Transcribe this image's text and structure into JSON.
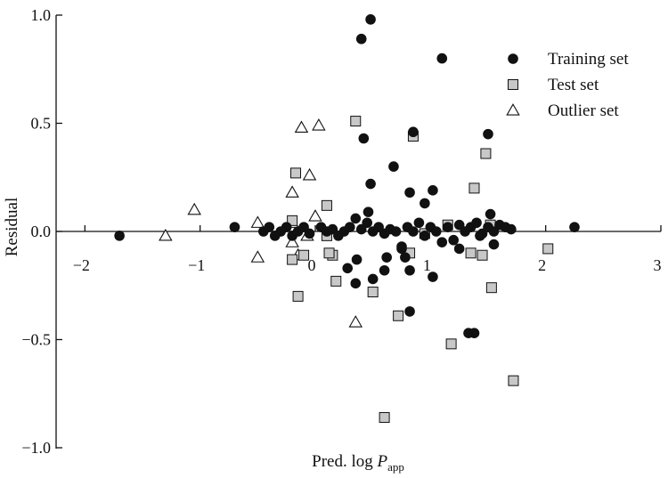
{
  "chart_data": {
    "type": "scatter",
    "title": "",
    "xlabel": "Pred. log ",
    "xlabel_var": "P",
    "xlabel_sub": "app",
    "ylabel": "Residual",
    "xlim": [
      -2.25,
      3.0
    ],
    "ylim": [
      -1.0,
      1.0
    ],
    "x_ticks": [
      -2,
      -1,
      0,
      1,
      2,
      3
    ],
    "x_tick_labels": [
      "−2",
      "−1",
      "0",
      "1",
      "2",
      "3"
    ],
    "y_ticks": [
      1.0,
      0.5,
      0.0,
      -0.5,
      -1.0
    ],
    "y_tick_labels": [
      "1.0",
      "0.5",
      "0.0",
      "−0.5",
      "−1.0"
    ],
    "grid": false,
    "legend_position": "top-right",
    "legend": [
      {
        "label": "Training set",
        "marker": "circle"
      },
      {
        "label": "Test set",
        "marker": "square"
      },
      {
        "label": "Outlier set",
        "marker": "triangle"
      }
    ],
    "series": [
      {
        "name": "Training set",
        "marker": "circle",
        "color": "#111111",
        "points": [
          [
            -1.7,
            -0.02
          ],
          [
            -0.7,
            0.02
          ],
          [
            -0.45,
            0.0
          ],
          [
            -0.4,
            0.02
          ],
          [
            -0.35,
            -0.02
          ],
          [
            -0.3,
            0.0
          ],
          [
            -0.25,
            0.02
          ],
          [
            -0.2,
            -0.02
          ],
          [
            -0.15,
            0.0
          ],
          [
            -0.1,
            0.02
          ],
          [
            -0.05,
            -0.01
          ],
          [
            0.05,
            0.02
          ],
          [
            0.1,
            0.0
          ],
          [
            0.15,
            0.01
          ],
          [
            0.2,
            -0.02
          ],
          [
            0.25,
            0.0
          ],
          [
            0.3,
            0.02
          ],
          [
            0.35,
            0.06
          ],
          [
            0.4,
            0.01
          ],
          [
            0.45,
            0.04
          ],
          [
            0.5,
            0.0
          ],
          [
            0.55,
            0.02
          ],
          [
            0.6,
            -0.01
          ],
          [
            0.65,
            0.01
          ],
          [
            0.7,
            0.0
          ],
          [
            0.75,
            -0.08
          ],
          [
            0.8,
            0.02
          ],
          [
            0.85,
            0.0
          ],
          [
            0.9,
            0.04
          ],
          [
            0.95,
            -0.02
          ],
          [
            1.0,
            0.02
          ],
          [
            1.05,
            0.0
          ],
          [
            1.1,
            -0.05
          ],
          [
            1.15,
            0.02
          ],
          [
            1.2,
            -0.04
          ],
          [
            1.25,
            0.03
          ],
          [
            1.3,
            0.0
          ],
          [
            1.35,
            0.02
          ],
          [
            1.4,
            0.04
          ],
          [
            1.45,
            -0.01
          ],
          [
            1.5,
            0.02
          ],
          [
            1.55,
            0.0
          ],
          [
            1.6,
            0.03
          ],
          [
            1.65,
            0.02
          ],
          [
            1.7,
            0.01
          ],
          [
            0.4,
            0.89
          ],
          [
            0.48,
            0.98
          ],
          [
            1.1,
            0.8
          ],
          [
            0.42,
            0.43
          ],
          [
            0.85,
            0.46
          ],
          [
            1.5,
            0.45
          ],
          [
            0.68,
            0.3
          ],
          [
            0.48,
            0.22
          ],
          [
            0.82,
            0.18
          ],
          [
            1.02,
            0.19
          ],
          [
            0.95,
            0.13
          ],
          [
            0.46,
            0.09
          ],
          [
            0.36,
            -0.13
          ],
          [
            0.28,
            -0.17
          ],
          [
            0.35,
            -0.24
          ],
          [
            0.5,
            -0.22
          ],
          [
            0.6,
            -0.18
          ],
          [
            0.82,
            -0.18
          ],
          [
            1.02,
            -0.21
          ],
          [
            0.78,
            -0.12
          ],
          [
            0.82,
            -0.37
          ],
          [
            1.38,
            -0.47
          ],
          [
            1.33,
            -0.47
          ],
          [
            1.55,
            -0.06
          ],
          [
            1.25,
            -0.08
          ],
          [
            0.62,
            -0.12
          ],
          [
            0.75,
            -0.07
          ],
          [
            2.25,
            0.02
          ],
          [
            1.52,
            0.08
          ],
          [
            1.43,
            -0.02
          ]
        ]
      },
      {
        "name": "Test set",
        "marker": "square",
        "color": "#c8c8c8",
        "points": [
          [
            0.35,
            0.51
          ],
          [
            0.85,
            0.44
          ],
          [
            1.48,
            0.36
          ],
          [
            -0.17,
            0.27
          ],
          [
            1.38,
            0.2
          ],
          [
            0.1,
            0.12
          ],
          [
            -0.2,
            0.05
          ],
          [
            1.15,
            0.03
          ],
          [
            -0.2,
            -0.13
          ],
          [
            -0.1,
            -0.11
          ],
          [
            0.15,
            -0.11
          ],
          [
            0.12,
            -0.1
          ],
          [
            0.82,
            -0.1
          ],
          [
            1.35,
            -0.1
          ],
          [
            1.45,
            -0.11
          ],
          [
            0.18,
            -0.23
          ],
          [
            0.5,
            -0.28
          ],
          [
            -0.15,
            -0.3
          ],
          [
            0.72,
            -0.39
          ],
          [
            2.02,
            -0.08
          ],
          [
            1.53,
            -0.26
          ],
          [
            1.18,
            -0.52
          ],
          [
            1.72,
            -0.69
          ],
          [
            0.6,
            -0.86
          ],
          [
            0.95,
            -0.01
          ],
          [
            0.1,
            -0.02
          ],
          [
            1.52,
            0.03
          ]
        ]
      },
      {
        "name": "Outlier set",
        "marker": "triangle",
        "color": "#ffffff",
        "points": [
          [
            -1.05,
            0.1
          ],
          [
            -1.3,
            -0.02
          ],
          [
            -0.5,
            0.04
          ],
          [
            -0.5,
            -0.12
          ],
          [
            -0.2,
            0.18
          ],
          [
            -0.12,
            0.48
          ],
          [
            0.03,
            0.49
          ],
          [
            -0.05,
            0.26
          ],
          [
            -0.2,
            0.04
          ],
          [
            -0.2,
            -0.05
          ],
          [
            -0.15,
            -0.11
          ],
          [
            -0.07,
            -0.02
          ],
          [
            0.0,
            0.07
          ],
          [
            0.35,
            -0.42
          ]
        ]
      }
    ]
  }
}
